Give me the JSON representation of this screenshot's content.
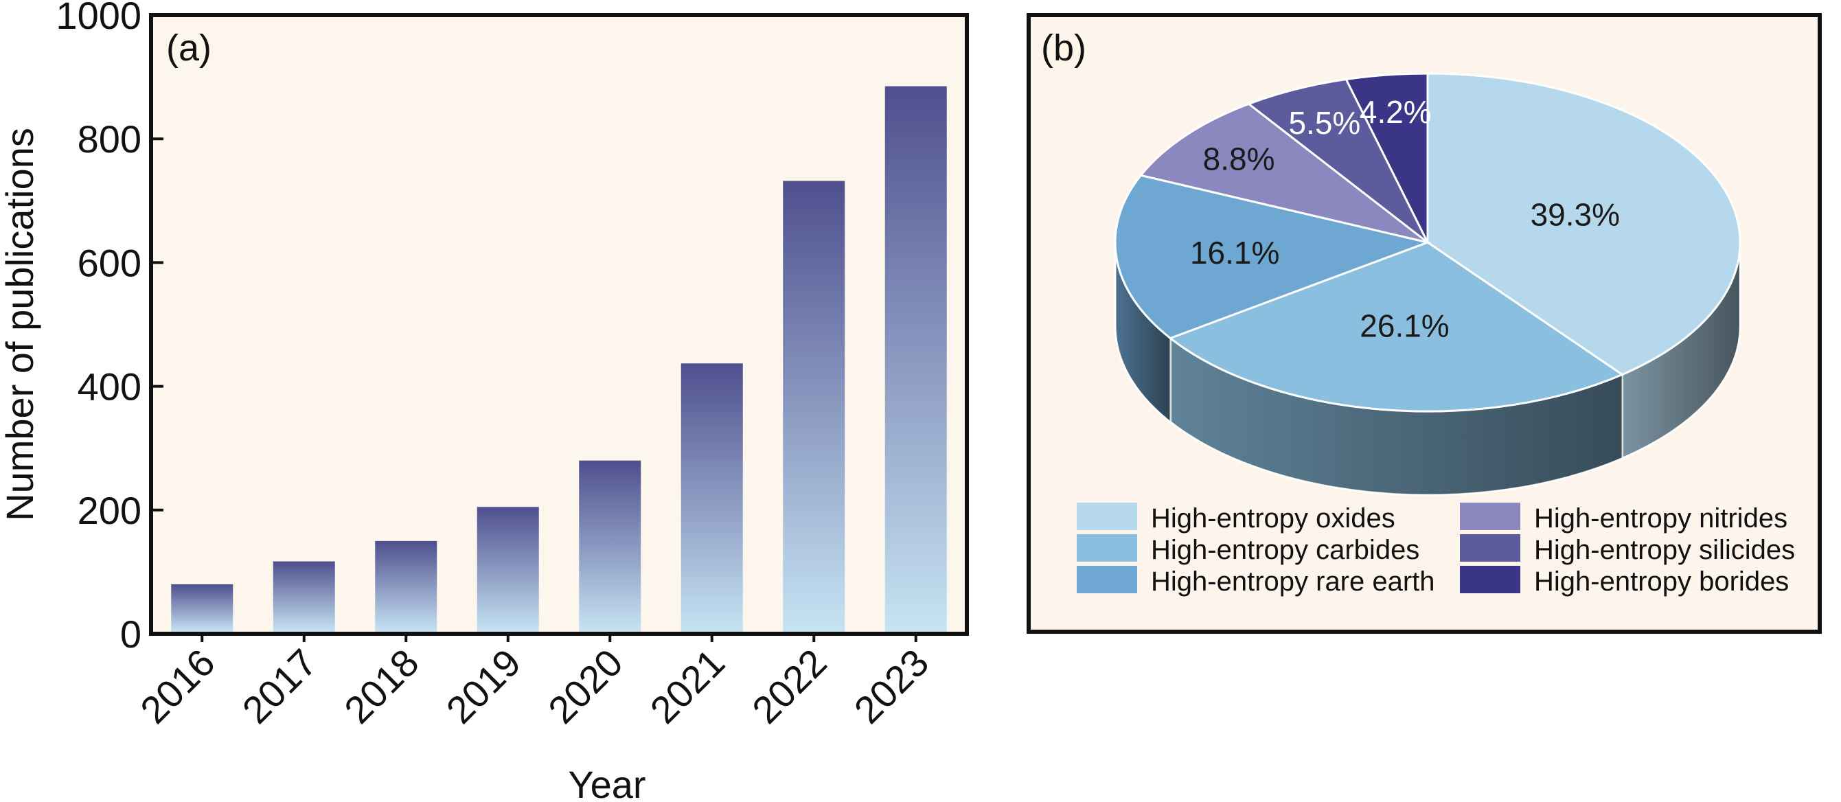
{
  "chart_data": [
    {
      "type": "bar",
      "panel_label": "(a)",
      "xlabel": "Year",
      "ylabel": "Number of publications",
      "categories": [
        "2016",
        "2017",
        "2018",
        "2019",
        "2020",
        "2021",
        "2022",
        "2023"
      ],
      "values": [
        80,
        117,
        150,
        205,
        280,
        437,
        732,
        885
      ],
      "ylim": [
        0,
        1000
      ],
      "yticks": [
        0,
        200,
        400,
        600,
        800,
        1000
      ],
      "grid": false,
      "background": "#fdf6ec",
      "bar_gradient": {
        "top": "#4f4f8e",
        "bottom": "#c6e3f3"
      }
    },
    {
      "type": "pie",
      "style": "3d",
      "panel_label": "(b)",
      "background": "#fdf4ec",
      "legend_position": "bottom",
      "slices": [
        {
          "label": "High-entropy oxides",
          "value": 39.3,
          "display": "39.3%",
          "color": "#b5d8ec"
        },
        {
          "label": "High-entropy carbides",
          "value": 26.1,
          "display": "26.1%",
          "color": "#8bbfe0"
        },
        {
          "label": "High-entropy rare earth",
          "value": 16.1,
          "display": "16.1%",
          "color": "#6fa7d3"
        },
        {
          "label": "High-entropy nitrides",
          "value": 8.8,
          "display": "8.8%",
          "color": "#8b88c0"
        },
        {
          "label": "High-entropy silicides",
          "value": 5.5,
          "display": "5.5%",
          "color": "#5c5c9c"
        },
        {
          "label": "High-entropy borides",
          "value": 4.2,
          "display": "4.2%",
          "color": "#3a3586"
        }
      ]
    }
  ]
}
